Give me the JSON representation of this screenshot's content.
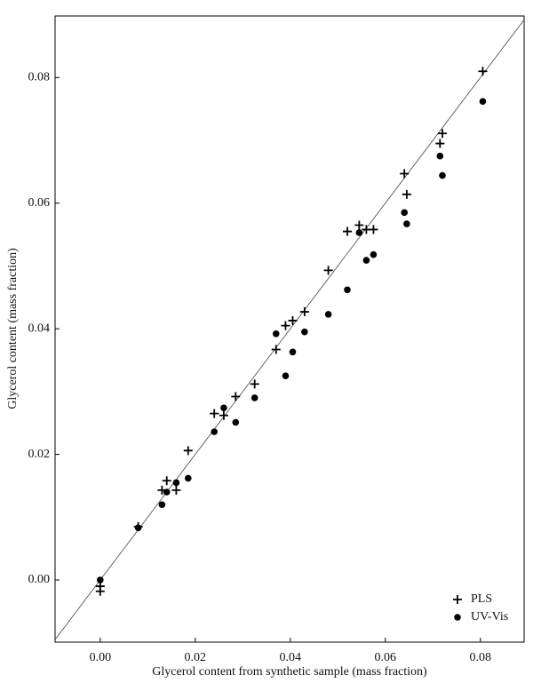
{
  "chart_data": {
    "type": "scatter",
    "x_label": "Glycerol content from synthetic sample (mass fraction)",
    "y_label": "Glycerol content (mass fraction)",
    "xlim": [
      -0.0095,
      0.0892
    ],
    "ylim": [
      -0.0099,
      0.0898
    ],
    "xticks": [
      {
        "value": 0,
        "label": "0.00"
      },
      {
        "value": 0.02,
        "label": "0.02"
      },
      {
        "value": 0.04,
        "label": "0.04"
      },
      {
        "value": 0.06,
        "label": "0.06"
      },
      {
        "value": 0.08,
        "label": "0.08"
      }
    ],
    "yticks": [
      {
        "value": 0,
        "label": "0.00"
      },
      {
        "value": 0.02,
        "label": "0.02"
      },
      {
        "value": 0.04,
        "label": "0.04"
      },
      {
        "value": 0.06,
        "label": "0.06"
      },
      {
        "value": 0.08,
        "label": "0.08"
      }
    ],
    "identity_line": true,
    "legend": "lower right",
    "series": [
      {
        "name": "PLS",
        "marker": "plus",
        "color": "#000000",
        "x": [
          0,
          0,
          0.008,
          0.013,
          0.014,
          0.016,
          0.0185,
          0.024,
          0.026,
          0.0285,
          0.0325,
          0.037,
          0.039,
          0.0405,
          0.043,
          0.048,
          0.052,
          0.0545,
          0.056,
          0.0575,
          0.064,
          0.0645,
          0.0715,
          0.072,
          0.0805
        ],
        "values": [
          -0.001,
          -0.0018,
          0.0085,
          0.0143,
          0.0158,
          0.0143,
          0.0206,
          0.0265,
          0.0262,
          0.0292,
          0.0312,
          0.0367,
          0.0405,
          0.0413,
          0.0427,
          0.0493,
          0.0555,
          0.0565,
          0.0558,
          0.0558,
          0.0647,
          0.0614,
          0.0695,
          0.0711,
          0.081
        ]
      },
      {
        "name": "UV-Vis",
        "marker": "circle",
        "color": "#000000",
        "x": [
          0,
          0.008,
          0.013,
          0.014,
          0.016,
          0.0185,
          0.024,
          0.026,
          0.0285,
          0.0325,
          0.037,
          0.039,
          0.0405,
          0.043,
          0.048,
          0.052,
          0.0545,
          0.056,
          0.0575,
          0.064,
          0.0645,
          0.0715,
          0.072,
          0.0805
        ],
        "values": [
          0,
          0.0083,
          0.012,
          0.014,
          0.0155,
          0.0162,
          0.0236,
          0.0274,
          0.0251,
          0.029,
          0.0392,
          0.0325,
          0.0363,
          0.0395,
          0.0423,
          0.0462,
          0.0553,
          0.0509,
          0.0518,
          0.0585,
          0.0567,
          0.0675,
          0.0644,
          0.0762
        ]
      }
    ]
  }
}
